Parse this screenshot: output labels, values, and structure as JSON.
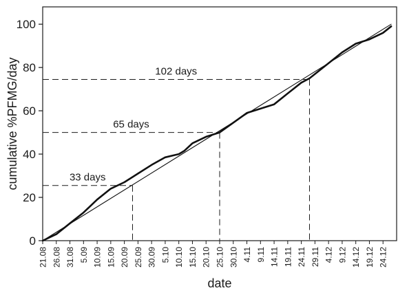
{
  "chart_data": {
    "type": "line",
    "title": "",
    "xlabel": "date",
    "ylabel": "cumulative %PFMG/day",
    "ylim": [
      0,
      108
    ],
    "yticks": [
      0,
      20,
      40,
      60,
      80,
      100
    ],
    "x_start_label": "21.08",
    "x_tick_labels": [
      "21.08",
      "26.08",
      "31.08",
      "5.09",
      "10.09",
      "15.09",
      "20.09",
      "25.09",
      "30.09",
      "5.10",
      "10.10",
      "15.10",
      "20.10",
      "25.10",
      "30.10",
      "4.11",
      "9.11",
      "14.11",
      "19.11",
      "24.11",
      "29.11",
      "4.12",
      "9.12",
      "14.12",
      "19.12",
      "24.12"
    ],
    "series": [
      {
        "style": "thick",
        "x": [
          "21.08",
          "26.08",
          "31.08",
          "5.09",
          "10.09",
          "15.09",
          "20.09",
          "25.09",
          "30.09",
          "5.10",
          "10.10",
          "12.10",
          "15.10",
          "20.10",
          "25.10",
          "30.10",
          "4.11",
          "9.11",
          "14.11",
          "19.11",
          "24.11",
          "27.11",
          "29.11",
          "4.12",
          "9.12",
          "14.12",
          "19.12",
          "24.12",
          "27.12"
        ],
        "y": [
          0,
          3,
          8,
          13,
          19,
          24,
          27,
          31,
          35,
          38.5,
          40,
          41.5,
          45,
          48,
          50,
          54.5,
          59,
          61,
          63,
          68,
          73,
          75,
          77,
          82,
          87,
          91,
          93,
          96,
          99
        ]
      },
      {
        "style": "thin",
        "x": [
          "21.08",
          "27.12"
        ],
        "y": [
          0,
          100
        ]
      }
    ],
    "annotations": [
      {
        "label": "33 days",
        "y": 25.5,
        "x": "23.09"
      },
      {
        "label": "65 days",
        "y": 50,
        "x": "25.10"
      },
      {
        "label": "102 days",
        "y": 74.5,
        "x": "27.11"
      }
    ],
    "grid": false,
    "legend": "none"
  }
}
